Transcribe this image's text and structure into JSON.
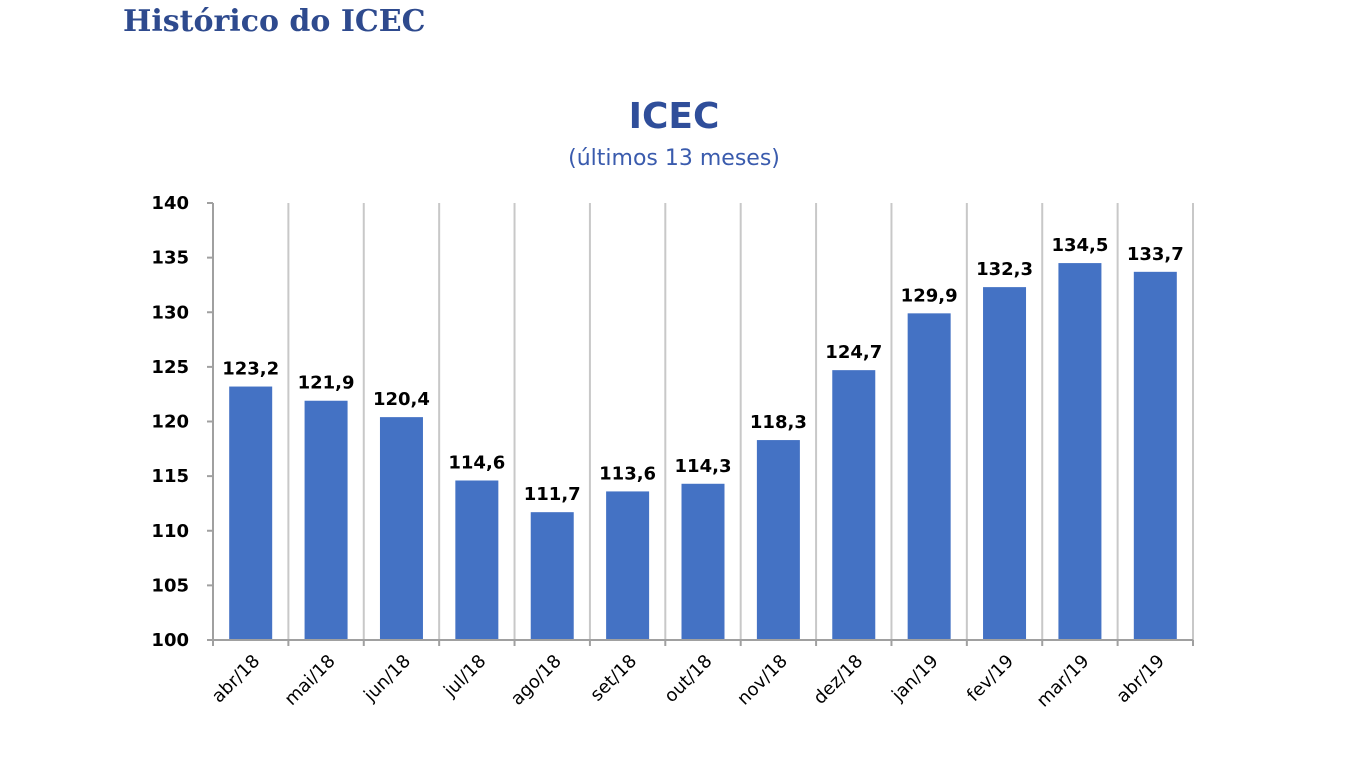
{
  "page": {
    "heading": "Histórico do ICEC"
  },
  "chart_data": {
    "type": "bar",
    "title": "ICEC",
    "subtitle": "(últimos 13 meses)",
    "categories": [
      "abr/18",
      "mai/18",
      "jun/18",
      "jul/18",
      "ago/18",
      "set/18",
      "out/18",
      "nov/18",
      "dez/18",
      "jan/19",
      "fev/19",
      "mar/19",
      "abr/19"
    ],
    "values": [
      123.2,
      121.9,
      120.4,
      114.6,
      111.7,
      113.6,
      114.3,
      118.3,
      124.7,
      129.9,
      132.3,
      134.5,
      133.7
    ],
    "data_labels": [
      "123,2",
      "121,9",
      "120,4",
      "114,6",
      "111,7",
      "113,6",
      "114,3",
      "118,3",
      "124,7",
      "129,9",
      "132,3",
      "134,5",
      "133,7"
    ],
    "ylim": [
      100,
      140
    ],
    "yticks": [
      "100",
      "105",
      "110",
      "115",
      "120",
      "125",
      "130",
      "135",
      "140"
    ],
    "xlabel": "",
    "ylabel": "",
    "bar_color": "#4472c4",
    "grid": "vertical"
  }
}
